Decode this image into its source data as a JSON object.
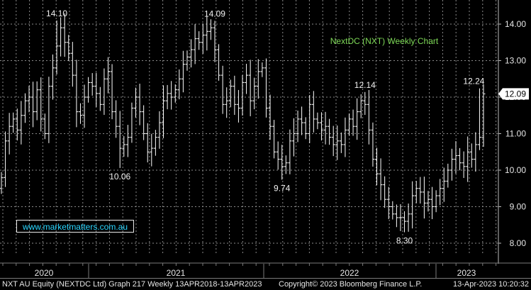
{
  "chart_data": {
    "type": "ohlc",
    "title": "NextDC (NXT) Weekly Chart",
    "x_tick_labels": [
      "2020",
      "2021",
      "2022",
      "2023"
    ],
    "y_ticks": [
      8.0,
      9.0,
      10.0,
      11.0,
      12.0,
      13.0,
      14.0
    ],
    "y_tick_labels": [
      "8.00",
      "9.00",
      "10.00",
      "11.00",
      "12.00",
      "13.00",
      "14.00"
    ],
    "ylim": [
      7.7,
      14.7
    ],
    "grid": true,
    "current_price": 12.09,
    "current_price_label": "12.09",
    "annotations": [
      {
        "text": "14.10",
        "value": 14.1,
        "week": 14
      },
      {
        "text": "14.09",
        "value": 14.09,
        "week": 54
      },
      {
        "text": "10.06",
        "value": 10.06,
        "week": 30
      },
      {
        "text": "9.74",
        "value": 9.74,
        "week": 71
      },
      {
        "text": "12.14",
        "value": 12.14,
        "week": 92
      },
      {
        "text": "8.30",
        "value": 8.3,
        "week": 102
      },
      {
        "text": "12.24",
        "value": 12.24,
        "week": 121
      }
    ],
    "closes": [
      9.8,
      10.8,
      11.2,
      11.4,
      11.1,
      11.5,
      11.9,
      12.0,
      11.6,
      12.2,
      11.4,
      11.0,
      12.3,
      12.8,
      13.4,
      13.9,
      13.5,
      13.2,
      12.6,
      11.6,
      11.5,
      12.0,
      12.4,
      12.3,
      12.1,
      11.8,
      12.5,
      12.7,
      11.6,
      11.2,
      10.6,
      10.7,
      10.9,
      11.7,
      12.0,
      11.6,
      11.0,
      10.5,
      10.6,
      10.9,
      11.3,
      11.9,
      12.1,
      12.0,
      12.2,
      12.5,
      12.9,
      13.1,
      13.3,
      13.6,
      13.5,
      13.7,
      13.8,
      13.9,
      13.3,
      12.6,
      11.8,
      11.9,
      12.3,
      11.8,
      11.7,
      12.4,
      12.6,
      11.9,
      12.3,
      12.7,
      12.8,
      11.7,
      11.2,
      10.5,
      10.3,
      10.1,
      10.2,
      10.8,
      11.0,
      11.4,
      11.3,
      11.0,
      11.8,
      11.4,
      11.3,
      11.1,
      11.2,
      10.9,
      10.7,
      10.8,
      10.7,
      11.1,
      11.4,
      11.2,
      11.6,
      11.9,
      11.8,
      11.1,
      10.3,
      9.9,
      9.6,
      9.2,
      9.0,
      8.8,
      8.7,
      8.7,
      8.6,
      8.8,
      9.3,
      9.5,
      9.4,
      9.1,
      9.2,
      9.0,
      9.3,
      9.5,
      9.7,
      10.0,
      10.3,
      10.4,
      10.2,
      10.1,
      10.5,
      10.3,
      10.7,
      10.9,
      12.09
    ]
  },
  "footer": {
    "left": "NXT AU Equity (NEXTDC Ltd) Graph 217  Weekly 13APR2018-13APR2023",
    "center": "Copyright© 2023 Bloomberg Finance L.P.",
    "right": "13-Apr-2023 10:20:32"
  },
  "watermark": "www.marketmatters.com.au",
  "colors": {
    "bars": "#ffffff",
    "grid": "#8a8a8a",
    "title": "#7ed957",
    "watermark": "#2ad6ff",
    "price_tag_bg": "#ffffff"
  }
}
